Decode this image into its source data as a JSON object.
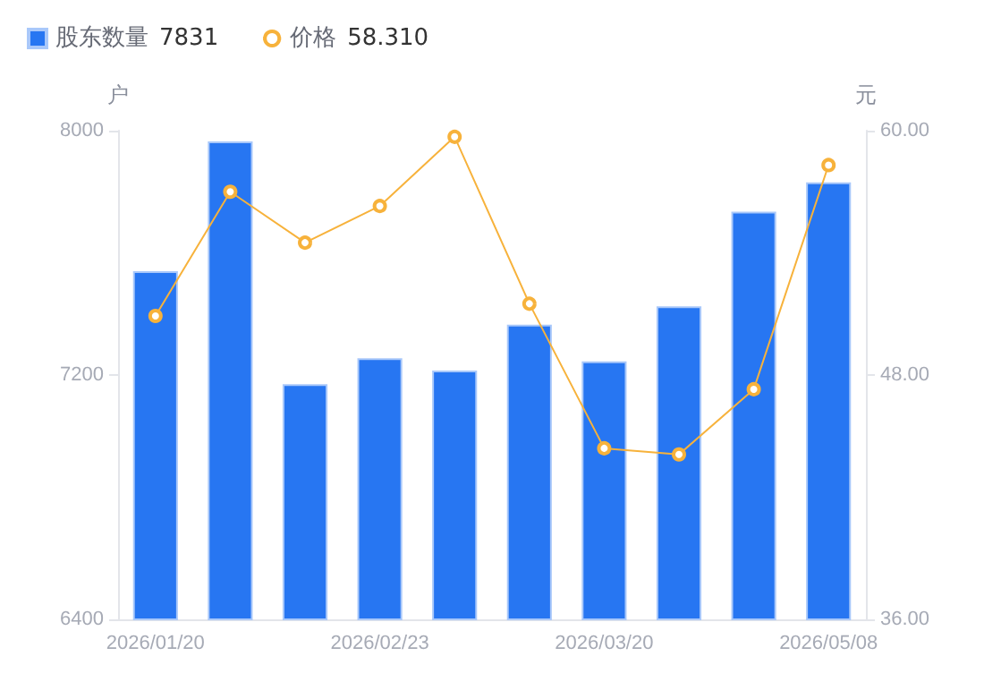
{
  "chart_data": {
    "type": "bar",
    "ylabel": "户",
    "y2label": "元",
    "categories": [
      "2026/01/20",
      null,
      null,
      "2026/02/23",
      null,
      null,
      "2026/03/20",
      null,
      null,
      "2026/05/08"
    ],
    "series": [
      {
        "name": "股东数量",
        "color": "#2776f2",
        "values": [
          7540,
          7965,
          7170,
          7255,
          7215,
          7365,
          7245,
          7425,
          7735,
          7831
        ]
      },
      {
        "name": "价格",
        "type": "line",
        "axis": "y2",
        "color": "#f7b23b",
        "marker": "circle",
        "values": [
          50.9,
          57.0,
          54.5,
          56.3,
          59.7,
          51.5,
          44.4,
          44.1,
          47.3,
          58.31
        ]
      }
    ],
    "ylim": [
      6400,
      8000
    ],
    "yticks": [
      6400,
      7200,
      8000
    ],
    "y2lim": [
      36,
      60
    ],
    "y2ticks": [
      {
        "value": 36,
        "label": "36.00"
      },
      {
        "value": 48,
        "label": "48.00"
      },
      {
        "value": 60,
        "label": "60.00"
      }
    ],
    "grid": false,
    "legend": "top left",
    "annotations": [
      "7831",
      "58.310"
    ]
  }
}
